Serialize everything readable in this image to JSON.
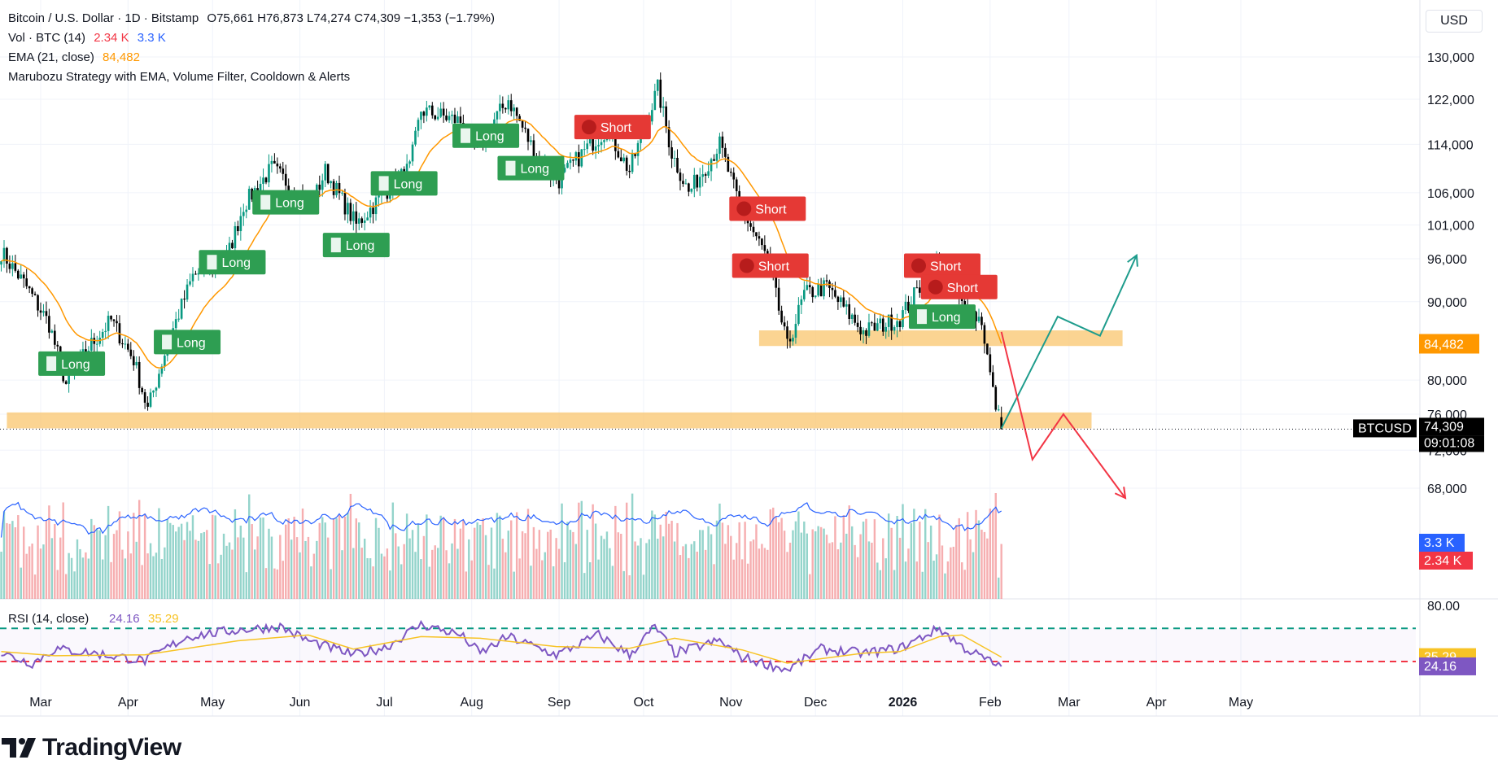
{
  "header": {
    "title": "Bitcoin / U.S. Dollar · 1D · Bitstamp",
    "ohlc": "O75,661 H76,873 L74,274 C74,309 −1,353 (−1.79%)",
    "vol_label": "Vol · BTC (14)",
    "vol_value": "2.34 K",
    "vol_ma_value": "3.3 K",
    "ema_label": "EMA (21, close)",
    "ema_value": "84,482",
    "strategy_label": "Marubozu Strategy with EMA, Volume Filter, Cooldown & Alerts",
    "currency": "USD"
  },
  "brand": {
    "name": "TradingView"
  },
  "chart_data": {
    "type": "candlestick",
    "symbol": "BTCUSD",
    "interval": "1D",
    "price_axis": {
      "ticks": [
        "130,000",
        "122,000",
        "114,000",
        "106,000",
        "101,000",
        "96,000",
        "90,000",
        "80,000",
        "76,000",
        "72,000",
        "68,000"
      ],
      "tick_values": [
        130000,
        122000,
        114000,
        106000,
        101000,
        96000,
        90000,
        80000,
        76000,
        72000,
        68000
      ],
      "scale": "log"
    },
    "time_axis": {
      "ticks": [
        "Mar",
        "Apr",
        "May",
        "Jun",
        "Jul",
        "Aug",
        "Sep",
        "Oct",
        "Nov",
        "Dec",
        "2026",
        "Feb",
        "Mar",
        "Apr",
        "May"
      ],
      "tick_dates": [
        "2025-03-01",
        "2025-04-01",
        "2025-05-01",
        "2025-06-01",
        "2025-07-01",
        "2025-08-01",
        "2025-09-01",
        "2025-10-01",
        "2025-11-01",
        "2025-12-01",
        "2026-01-01",
        "2026-02-01",
        "2026-03-01",
        "2026-04-01",
        "2026-05-01"
      ],
      "bold_ticks": [
        "2026"
      ]
    },
    "price_path": [
      [
        "2025-02-15",
        97000
      ],
      [
        "2025-02-24",
        92000
      ],
      [
        "2025-03-04",
        87000
      ],
      [
        "2025-03-10",
        79500
      ],
      [
        "2025-03-18",
        84000
      ],
      [
        "2025-03-26",
        87500
      ],
      [
        "2025-04-03",
        82500
      ],
      [
        "2025-04-08",
        76500
      ],
      [
        "2025-04-15",
        84500
      ],
      [
        "2025-04-24",
        93500
      ],
      [
        "2025-05-06",
        96000
      ],
      [
        "2025-05-12",
        104000
      ],
      [
        "2025-05-22",
        110000
      ],
      [
        "2025-06-05",
        104000
      ],
      [
        "2025-06-10",
        109500
      ],
      [
        "2025-06-21",
        101000
      ],
      [
        "2025-07-01",
        106000
      ],
      [
        "2025-07-10",
        110000
      ],
      [
        "2025-07-14",
        120000
      ],
      [
        "2025-07-28",
        118000
      ],
      [
        "2025-08-02",
        113000
      ],
      [
        "2025-08-14",
        122000
      ],
      [
        "2025-08-25",
        111000
      ],
      [
        "2025-09-01",
        108000
      ],
      [
        "2025-09-12",
        114000
      ],
      [
        "2025-09-18",
        116500
      ],
      [
        "2025-09-26",
        109500
      ],
      [
        "2025-10-06",
        124000
      ],
      [
        "2025-10-11",
        112500
      ],
      [
        "2025-10-17",
        106000
      ],
      [
        "2025-10-28",
        114000
      ],
      [
        "2025-11-04",
        104000
      ],
      [
        "2025-11-14",
        96000
      ],
      [
        "2025-11-21",
        84000
      ],
      [
        "2025-11-27",
        91000
      ],
      [
        "2025-12-05",
        92000
      ],
      [
        "2025-12-18",
        86000
      ],
      [
        "2025-12-31",
        87800
      ],
      [
        "2026-01-14",
        96500
      ],
      [
        "2026-01-22",
        89500
      ],
      [
        "2026-01-29",
        87500
      ],
      [
        "2026-02-02",
        78500
      ],
      [
        "2026-02-05",
        74309
      ]
    ],
    "last_candle": {
      "open": 75661,
      "high": 76873,
      "low": 74274,
      "close": 74309,
      "change": -1353,
      "change_pct": -1.79
    },
    "ema21_last": 84482,
    "volume_last": 2.34,
    "volume_ma14_last": 3.3,
    "volume_unit": "K",
    "signals": [
      {
        "type": "Long",
        "date": "2025-03-12",
        "price": 82000
      },
      {
        "type": "Long",
        "date": "2025-04-22",
        "price": 84700
      },
      {
        "type": "Long",
        "date": "2025-05-08",
        "price": 95500
      },
      {
        "type": "Long",
        "date": "2025-05-27",
        "price": 104500
      },
      {
        "type": "Long",
        "date": "2025-06-21",
        "price": 98000
      },
      {
        "type": "Long",
        "date": "2025-07-08",
        "price": 107500
      },
      {
        "type": "Long",
        "date": "2025-08-06",
        "price": 115500
      },
      {
        "type": "Long",
        "date": "2025-08-22",
        "price": 110000
      },
      {
        "type": "Short",
        "date": "2025-09-20",
        "price": 117000
      },
      {
        "type": "Short",
        "date": "2025-11-14",
        "price": 103500
      },
      {
        "type": "Short",
        "date": "2025-11-15",
        "price": 95000
      },
      {
        "type": "Long",
        "date": "2026-01-15",
        "price": 88000
      },
      {
        "type": "Short",
        "date": "2026-01-15",
        "price": 95000
      },
      {
        "type": "Short",
        "date": "2026-01-21",
        "price": 92000
      }
    ],
    "zones": [
      {
        "from_date": "2025-11-11",
        "to_date": "2026-03-20",
        "price_low": 84200,
        "price_high": 86200,
        "color": "#f9c56d"
      },
      {
        "from_date": "2025-02-17",
        "to_date": "2026-03-09",
        "price_low": 74400,
        "price_high": 76200,
        "color": "#f9c56d"
      }
    ],
    "projections": [
      {
        "color": "#1e9c8c",
        "points": [
          [
            "2026-02-05",
            74400
          ],
          [
            "2026-02-25",
            88000
          ],
          [
            "2026-03-12",
            85500
          ],
          [
            "2026-03-25",
            96500
          ]
        ]
      },
      {
        "color": "#f23645",
        "points": [
          [
            "2026-02-05",
            86000
          ],
          [
            "2026-02-16",
            71000
          ],
          [
            "2026-02-27",
            76000
          ],
          [
            "2026-03-21",
            67000
          ]
        ]
      }
    ],
    "price_labels": [
      {
        "text": "84,482",
        "kind": "ema",
        "color": "#ff9800"
      },
      {
        "text": "74,309",
        "kind": "last",
        "color": "#000000"
      },
      {
        "text": "09:01:08",
        "kind": "countdown",
        "color": "#000000"
      },
      {
        "text": "BTCUSD",
        "kind": "symbol",
        "color": "#000000"
      },
      {
        "text": "3.3 K",
        "kind": "vol_ma",
        "color": "#2962ff"
      },
      {
        "text": "2.34 K",
        "kind": "vol",
        "color": "#f23645"
      }
    ],
    "rsi": {
      "label": "RSI (14, close)",
      "value": "24.16",
      "ma_value": "35.29",
      "upper": 70,
      "lower": 30,
      "axis_tick": "80.00",
      "path": [
        [
          "2025-02-15",
          40
        ],
        [
          "2025-02-26",
          28
        ],
        [
          "2025-03-06",
          45
        ],
        [
          "2025-03-20",
          40
        ],
        [
          "2025-04-07",
          31
        ],
        [
          "2025-04-22",
          60
        ],
        [
          "2025-05-10",
          68
        ],
        [
          "2025-05-25",
          72
        ],
        [
          "2025-06-04",
          55
        ],
        [
          "2025-06-20",
          38
        ],
        [
          "2025-07-02",
          48
        ],
        [
          "2025-07-14",
          75
        ],
        [
          "2025-07-28",
          62
        ],
        [
          "2025-08-04",
          40
        ],
        [
          "2025-08-14",
          60
        ],
        [
          "2025-08-31",
          38
        ],
        [
          "2025-09-15",
          62
        ],
        [
          "2025-09-26",
          38
        ],
        [
          "2025-10-05",
          72
        ],
        [
          "2025-10-12",
          40
        ],
        [
          "2025-10-28",
          55
        ],
        [
          "2025-11-05",
          35
        ],
        [
          "2025-11-21",
          20
        ],
        [
          "2025-12-03",
          45
        ],
        [
          "2025-12-18",
          40
        ],
        [
          "2025-12-31",
          46
        ],
        [
          "2026-01-14",
          70
        ],
        [
          "2026-01-22",
          48
        ],
        [
          "2026-02-02",
          28
        ],
        [
          "2026-02-05",
          24.16
        ]
      ],
      "ma_path": [
        [
          "2025-02-15",
          42
        ],
        [
          "2025-03-06",
          37
        ],
        [
          "2025-04-07",
          38
        ],
        [
          "2025-05-10",
          55
        ],
        [
          "2025-06-04",
          62
        ],
        [
          "2025-06-20",
          45
        ],
        [
          "2025-07-14",
          60
        ],
        [
          "2025-08-04",
          58
        ],
        [
          "2025-08-31",
          48
        ],
        [
          "2025-09-26",
          46
        ],
        [
          "2025-10-12",
          58
        ],
        [
          "2025-11-05",
          44
        ],
        [
          "2025-11-21",
          28
        ],
        [
          "2025-12-18",
          40
        ],
        [
          "2025-12-31",
          42
        ],
        [
          "2026-01-14",
          60
        ],
        [
          "2026-01-22",
          62
        ],
        [
          "2026-02-05",
          35.29
        ]
      ]
    },
    "legend": "top-left",
    "grid": true
  },
  "colors": {
    "up": "#089981",
    "down": "#000000",
    "ema": "#ff9800",
    "vol_up": "#66c2b5",
    "vol_down": "#f28b8f",
    "vol_ma": "#2962ff",
    "rsi": "#7e57c2",
    "rsi_ma": "#f7c325",
    "long_signal": "#2e9e52",
    "short_signal": "#e53935",
    "zone": "#f9c56d"
  }
}
